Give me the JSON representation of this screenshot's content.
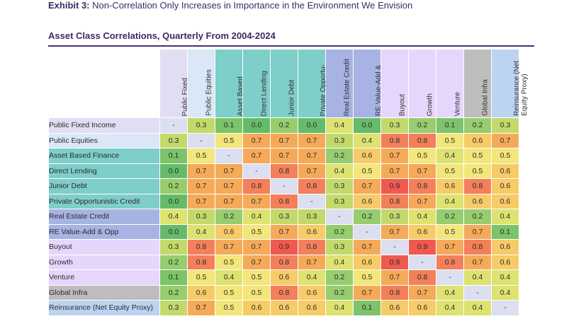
{
  "header": {
    "exhibit_label": "Exhibit 3:",
    "exhibit_title": "Non-Correlation Only Increases in Importance in the Environment We Envision",
    "subtitle": "Asset Class Correlations, Quarterly From 2004-2024"
  },
  "chart_data": {
    "type": "heatmap",
    "title": "Asset Class Correlations, Quarterly From 2004-2024",
    "columns": [
      "Public Fixed\nIncome",
      "Public Equities",
      "Asset Based\nFinance",
      "Direct Lending",
      "Junior Debt",
      "Private Opportu-\nnistic Credit",
      "Real Estate Credit",
      "RE Value-Add &\nOpp",
      "Buyout",
      "Growth",
      "Venture",
      "Global Infra",
      "Reinsurance (Net\nEquity Proxy)"
    ],
    "rows": [
      "Public Fixed Income",
      "Public Equities",
      "Asset Based Finance",
      "Direct Lending",
      "Junior Debt",
      "Private Opportunistic Credit",
      "Real Estate Credit",
      "RE Value-Add & Opp",
      "Buyout",
      "Growth",
      "Venture",
      "Global Infra",
      "Reinsurance (Net Equity Proxy)"
    ],
    "values": [
      [
        "-",
        "0.3",
        "0.1",
        "0.0",
        "0.2",
        "0.0",
        "0.4",
        "0.0",
        "0.3",
        "0.2",
        "0.1",
        "0.2",
        "0.3"
      ],
      [
        "0.3",
        "-",
        "0.5",
        "0.7",
        "0.7",
        "0.7",
        "0.3",
        "0.4",
        "0.8",
        "0.8",
        "0.5",
        "0.6",
        "0.7"
      ],
      [
        "0.1",
        "0.5",
        "-",
        "0.7",
        "0.7",
        "0.7",
        "0.2",
        "0.6",
        "0.7",
        "0.5",
        "0.4",
        "0.5",
        "0.5"
      ],
      [
        "0.0",
        "0.7",
        "0.7",
        "-",
        "0.8",
        "0.7",
        "0.4",
        "0.5",
        "0.7",
        "0.7",
        "0.5",
        "0.5",
        "0.6"
      ],
      [
        "0.2",
        "0.7",
        "0.7",
        "0.8",
        "-",
        "0.8",
        "0.3",
        "0.7",
        "0.9",
        "0.8",
        "0.6",
        "0.8",
        "0.6"
      ],
      [
        "0.0",
        "0.7",
        "0.7",
        "0.7",
        "0.8",
        "-",
        "0.3",
        "0.6",
        "0.8",
        "0.7",
        "0.4",
        "0.6",
        "0.6"
      ],
      [
        "0.4",
        "0.3",
        "0.2",
        "0.4",
        "0.3",
        "0.3",
        "-",
        "0.2",
        "0.3",
        "0.4",
        "0.2",
        "0.2",
        "0.4"
      ],
      [
        "0.0",
        "0.4",
        "0.6",
        "0.5",
        "0.7",
        "0.6",
        "0.2",
        "-",
        "0.7",
        "0.6",
        "0.5",
        "0.7",
        "0.1"
      ],
      [
        "0.3",
        "0.8",
        "0.7",
        "0.7",
        "0.9",
        "0.8",
        "0.3",
        "0.7",
        "-",
        "0.9",
        "0.7",
        "0.8",
        "0.6"
      ],
      [
        "0.2",
        "0.8",
        "0.5",
        "0.7",
        "0.8",
        "0.7",
        "0.4",
        "0.6",
        "0.9",
        "-",
        "0.8",
        "0.7",
        "0.6"
      ],
      [
        "0.1",
        "0.5",
        "0.4",
        "0.5",
        "0.6",
        "0.4",
        "0.2",
        "0.5",
        "0.7",
        "0.8",
        "-",
        "0.4",
        "0.4"
      ],
      [
        "0.2",
        "0.6",
        "0.5",
        "0.5",
        "0.8",
        "0.6",
        "0.2",
        "0.7",
        "0.8",
        "0.7",
        "0.4",
        "-",
        "0.4"
      ],
      [
        "0.3",
        "0.7",
        "0.5",
        "0.6",
        "0.6",
        "0.6",
        "0.4",
        "0.1",
        "0.6",
        "0.6",
        "0.4",
        "0.4",
        "-"
      ]
    ],
    "group_colors": [
      "#e1def4",
      "#d9e7f6",
      "#7ecec9",
      "#7ecec9",
      "#7ecec9",
      "#7ecec9",
      "#a6b3e3",
      "#a6b3e3",
      "#e6d6fb",
      "#e6d6fb",
      "#e6d6fb",
      "#bdbdbd",
      "#bcd3f2"
    ],
    "scale_colors": {
      "diag": "#dcdff0",
      "0.0": "#66bb6a",
      "0.1": "#7cc36a",
      "0.2": "#97cd6e",
      "0.3": "#c3d96b",
      "0.4": "#dee271",
      "0.5": "#f3e67a",
      "0.6": "#f6cb68",
      "0.7": "#f5aa5a",
      "0.8": "#f3805a",
      "0.9": "#f05950"
    }
  }
}
